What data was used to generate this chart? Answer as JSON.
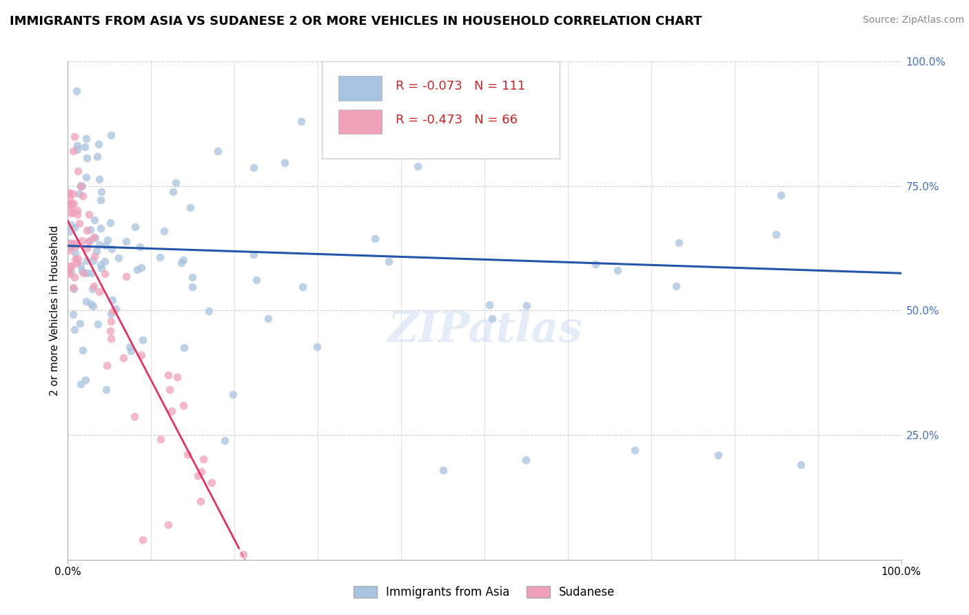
{
  "title": "IMMIGRANTS FROM ASIA VS SUDANESE 2 OR MORE VEHICLES IN HOUSEHOLD CORRELATION CHART",
  "source": "Source: ZipAtlas.com",
  "ylabel": "2 or more Vehicles in Household",
  "legend1_r": "R = -0.073",
  "legend1_n": "N = 111",
  "legend2_r": "R = -0.473",
  "legend2_n": "N = 66",
  "legend_label1": "Immigrants from Asia",
  "legend_label2": "Sudanese",
  "blue_color": "#a8c4e0",
  "pink_color": "#f0a0b8",
  "blue_line_color": "#2255aa",
  "pink_line_color": "#e83060",
  "watermark": "ZIPatlas",
  "title_fontsize": 13,
  "source_fontsize": 10,
  "tick_fontsize": 11,
  "legend_fontsize": 13
}
